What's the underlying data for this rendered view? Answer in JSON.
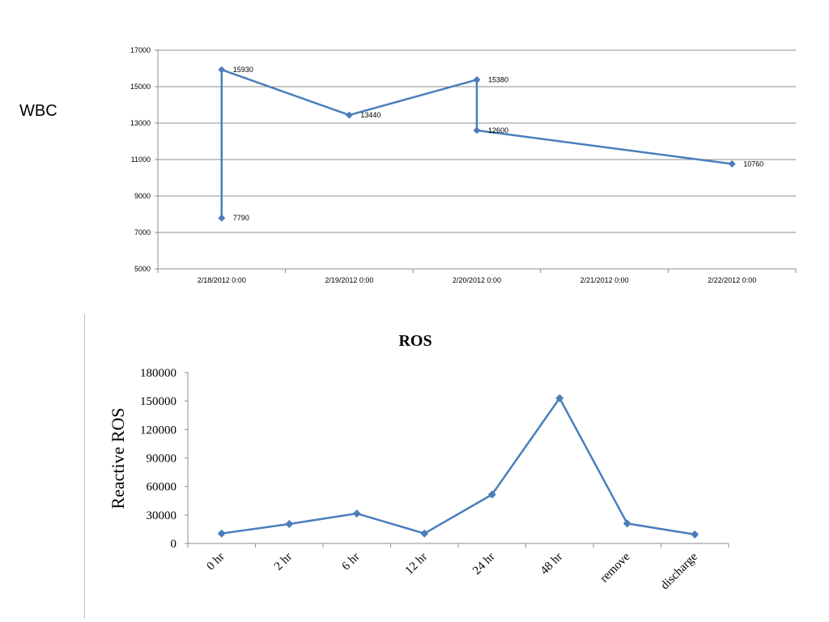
{
  "slide": {
    "side_label": "WBC"
  },
  "chart_data": [
    {
      "type": "line",
      "title": "",
      "xlabel": "",
      "ylabel": "",
      "ylim": [
        5000,
        17000
      ],
      "yticks": [
        "17000",
        "15000",
        "13000",
        "11000",
        "9000",
        "7000",
        "5000"
      ],
      "xlim": [
        "2/18/2012 0:00",
        "2/22/2012 24:00"
      ],
      "categories": [
        "2/18/2012 0:00",
        "2/19/2012 0:00",
        "2/20/2012 0:00",
        "2/21/2012 0:00",
        "2/22/2012 0:00"
      ],
      "grid": true,
      "color": "#4a7ebb",
      "series": [
        {
          "x": [
            "2/18/2012 12:00",
            "2/18/2012 12:00",
            "2/19/2012 12:00",
            "2/20/2012 12:00",
            "2/20/2012 12:00",
            "2/22/2012 12:00"
          ],
          "values": [
            7790,
            15930,
            13440,
            15380,
            12600,
            10760
          ],
          "labels": [
            "7790",
            "15930",
            "13440",
            "15380",
            "12600",
            "10760"
          ]
        }
      ]
    },
    {
      "type": "line",
      "title": "ROS",
      "xlabel": "",
      "ylabel": "Reactive ROS",
      "ylim": [
        0,
        180000
      ],
      "yticks": [
        "180000",
        "150000",
        "120000",
        "90000",
        "60000",
        "30000",
        "0"
      ],
      "categories": [
        "0 hr",
        "2 hr",
        "6 hr",
        "12 hr",
        "24 hr",
        "48 hr",
        "remove",
        "discharge"
      ],
      "grid": false,
      "color": "#4a7ebb",
      "series": [
        {
          "values": [
            10500,
            20500,
            31500,
            10500,
            51500,
            153000,
            21000,
            9500
          ]
        }
      ]
    }
  ]
}
